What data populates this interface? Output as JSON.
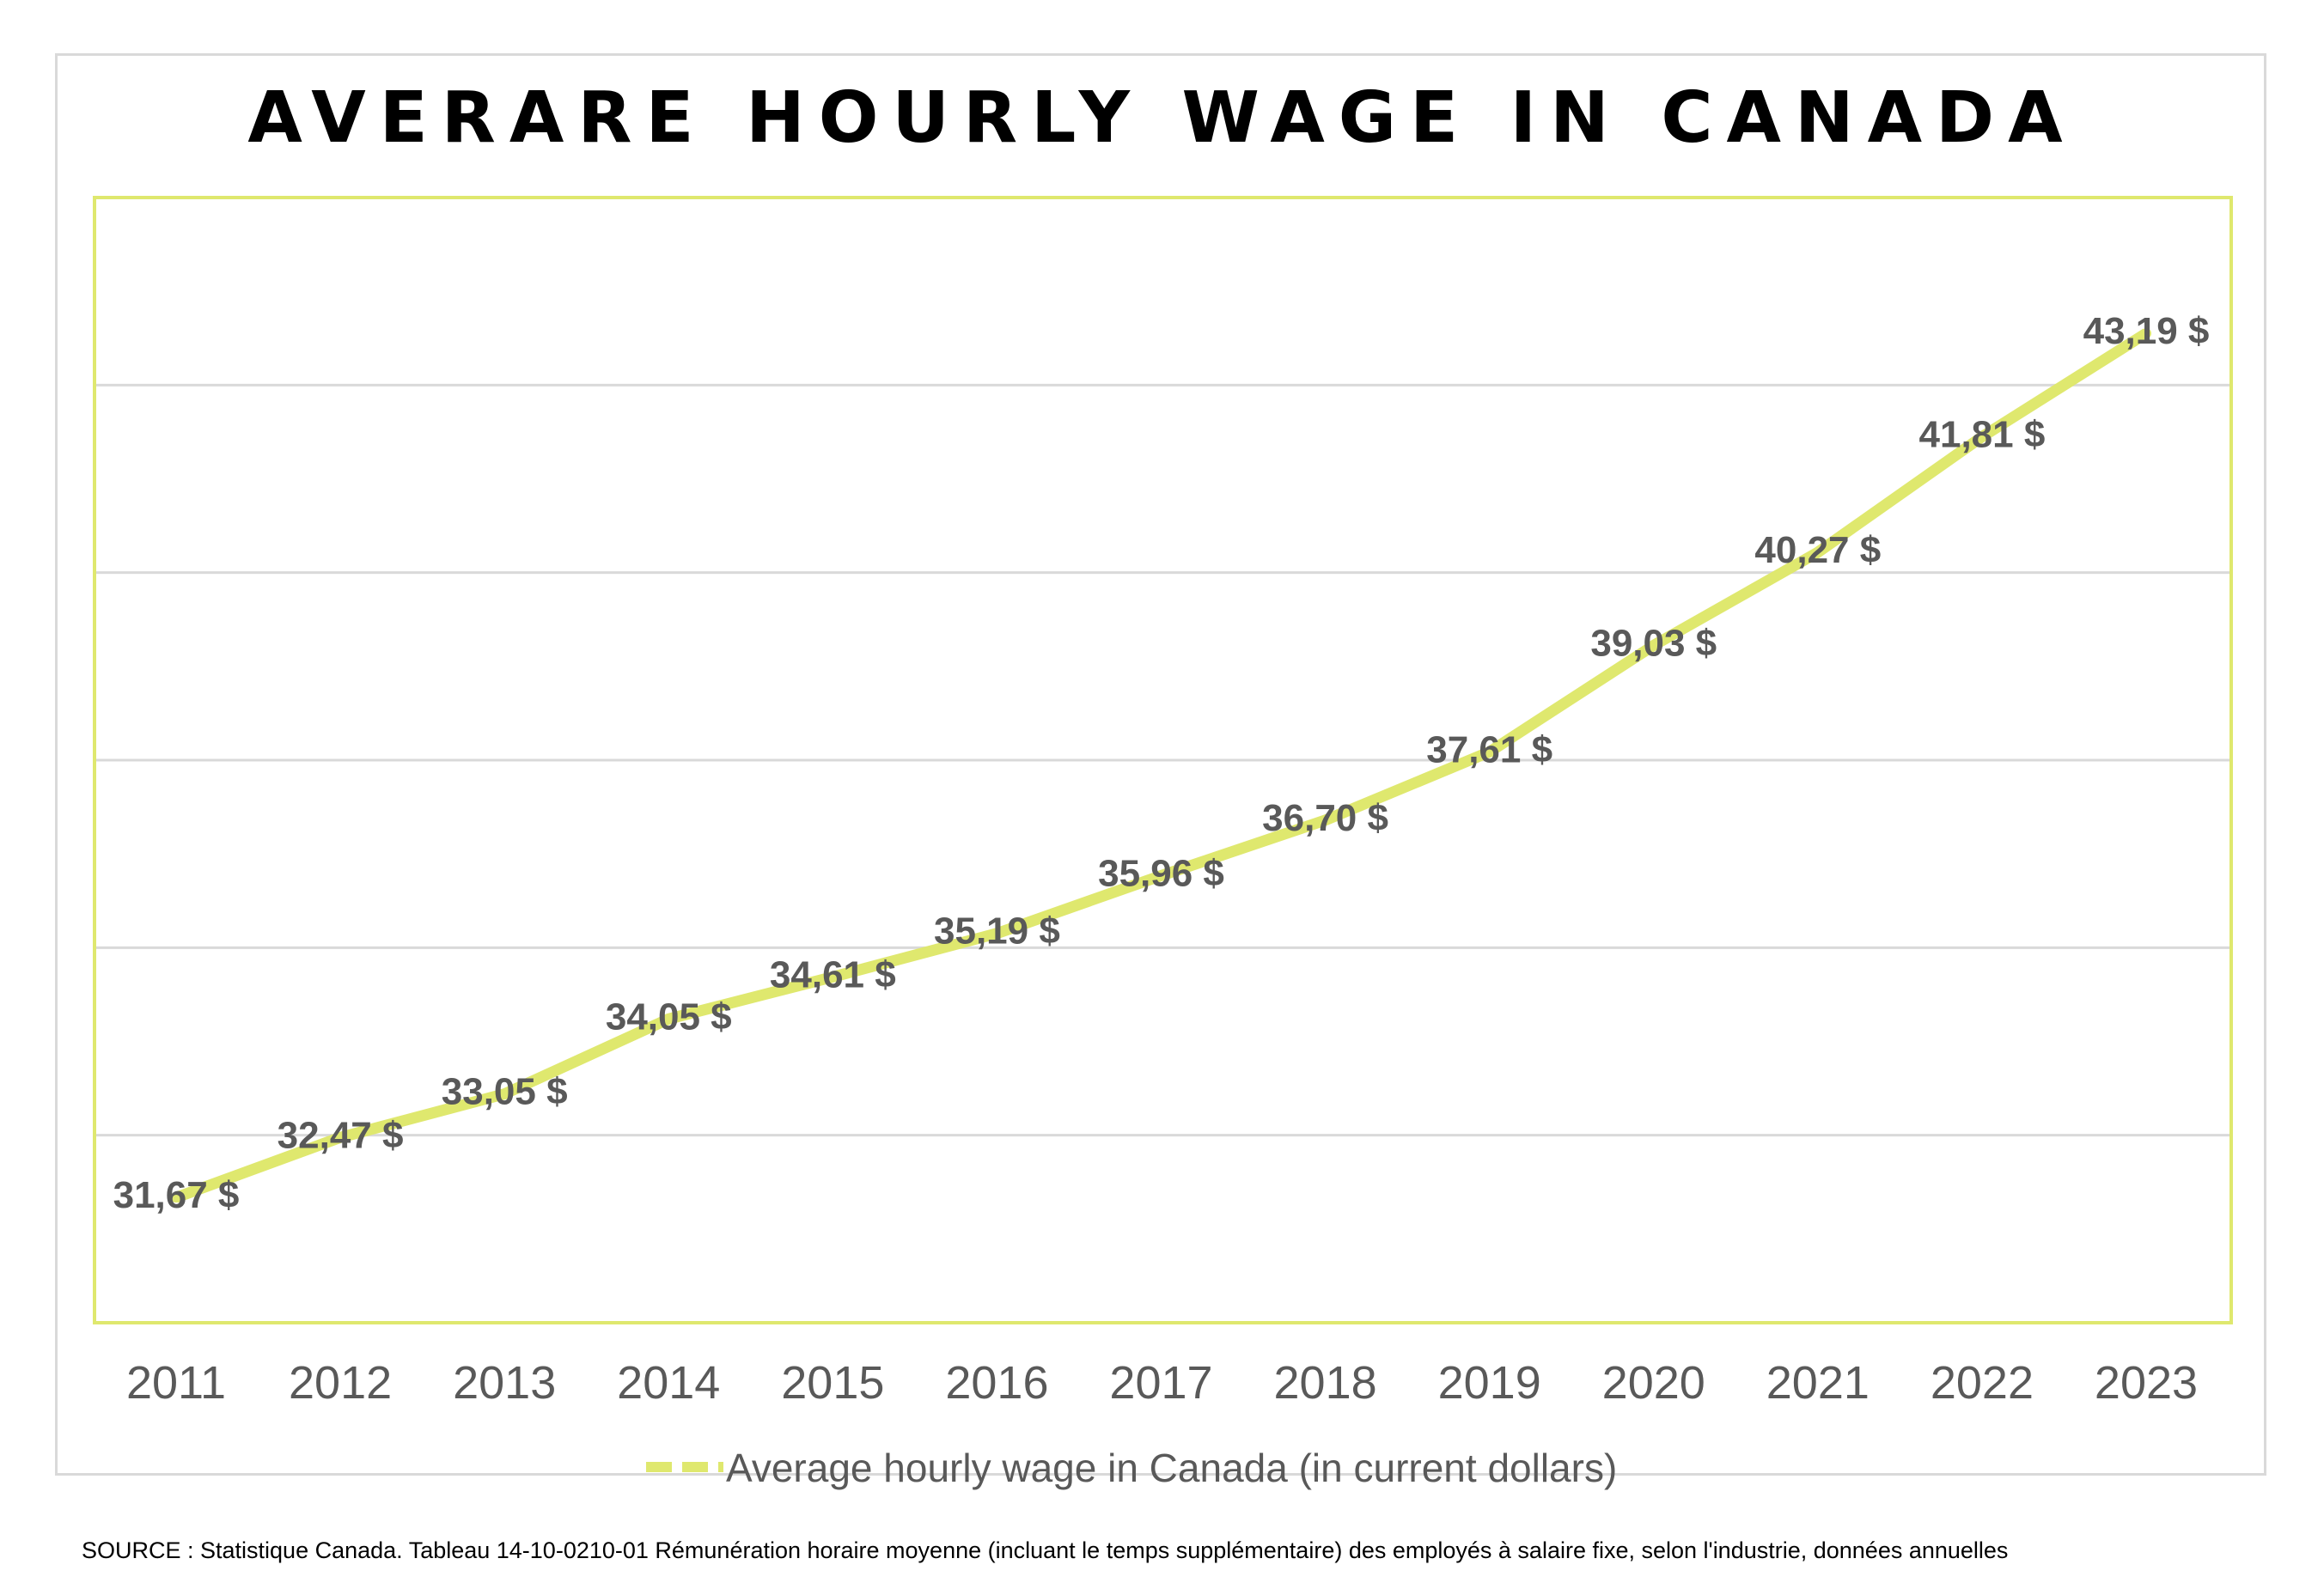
{
  "chart_data": {
    "type": "line",
    "title": "AVERARE HOURLY WAGE IN CANADA",
    "xlabel": "",
    "ylabel": "",
    "categories": [
      "2011",
      "2012",
      "2013",
      "2014",
      "2015",
      "2016",
      "2017",
      "2018",
      "2019",
      "2020",
      "2021",
      "2022",
      "2023"
    ],
    "series": [
      {
        "name": "Average hourly wage in Canada (in current dollars)",
        "values": [
          31.67,
          32.47,
          33.05,
          34.05,
          34.61,
          35.19,
          35.96,
          36.7,
          37.61,
          39.03,
          40.27,
          41.81,
          43.19
        ],
        "labels": [
          "31,67 $",
          "32,47 $",
          "33,05 $",
          "34,05 $",
          "34,61 $",
          "35,19 $",
          "35,96 $",
          "36,70 $",
          "37,61 $",
          "39,03 $",
          "40,27 $",
          "41,81 $",
          "43,19 $"
        ]
      }
    ],
    "ylim": [
      30,
      45
    ],
    "grid": true,
    "legend": "bottom-center",
    "colors": {
      "line": "#dfe86e",
      "plot_border": "#dfe86e",
      "grid": "#d9d9d9",
      "data_label": "#595959",
      "tick_label": "#595959"
    }
  },
  "source": "SOURCE : Statistique Canada. Tableau 14-10-0210-01  Rémunération horaire moyenne (incluant le temps supplémentaire) des employés à salaire fixe, selon l'industrie, données annuelles"
}
